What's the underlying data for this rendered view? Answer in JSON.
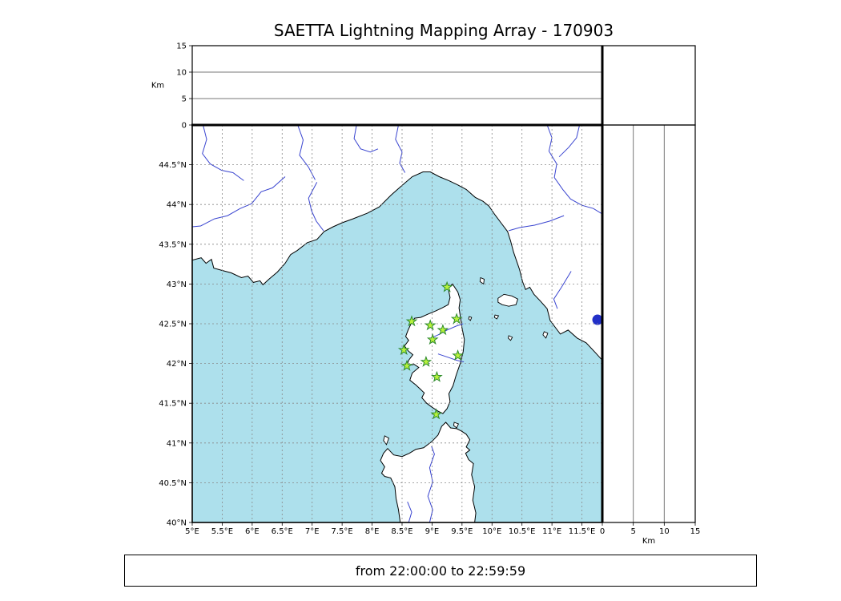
{
  "title": "SAETTA Lightning Mapping Array - 170903",
  "footer": {
    "time_range": "from 22:00:00 to 22:59:59"
  },
  "colors": {
    "sea": "#ade0ec",
    "land": "#ffffff",
    "coastline": "#000000",
    "river": "#3a45d0",
    "lake": "#2230c8",
    "grid": "#888888",
    "frame": "#000000",
    "station_fill": "#b8f23c",
    "station_edge": "#2d8a2d"
  },
  "chart_data": {
    "type": "scatter",
    "title": "SAETTA Lightning Mapping Array - 170903",
    "time_annotation": "from 22:00:00 to 22:59:59",
    "map_axes": {
      "lon_range": [
        5.0,
        11.84
      ],
      "lat_range": [
        40.0,
        45.0
      ],
      "lon_ticks": [
        5,
        5.5,
        6,
        6.5,
        7,
        7.5,
        8,
        8.5,
        9,
        9.5,
        10,
        10.5,
        11,
        11.5
      ],
      "lon_tick_labels": [
        "5°E",
        "5.5°E",
        "6°E",
        "6.5°E",
        "7°E",
        "7.5°E",
        "8°E",
        "8.5°E",
        "9°E",
        "9.5°E",
        "10°E",
        "10.5°E",
        "11°E",
        "11.5°E"
      ],
      "lat_ticks": [
        40,
        40.5,
        41,
        41.5,
        42,
        42.5,
        43,
        43.5,
        44,
        44.5
      ],
      "lat_tick_labels": [
        "40°N",
        "40.5°N",
        "41°N",
        "41.5°N",
        "42°N",
        "42.5°N",
        "43°N",
        "43.5°N",
        "44°N",
        "44.5°N"
      ],
      "grid_dashed": true
    },
    "altitude_axes": {
      "label": "Km",
      "range": [
        0,
        15
      ],
      "ticks": [
        0,
        5,
        10,
        15
      ],
      "tick_labels": [
        "0",
        "5",
        "10",
        "15"
      ],
      "gridlines": [
        5,
        10
      ]
    },
    "stations": [
      {
        "lon": 9.25,
        "lat": 42.96
      },
      {
        "lon": 8.66,
        "lat": 42.53
      },
      {
        "lon": 8.97,
        "lat": 42.48
      },
      {
        "lon": 9.41,
        "lat": 42.56
      },
      {
        "lon": 9.18,
        "lat": 42.42
      },
      {
        "lon": 9.01,
        "lat": 42.3
      },
      {
        "lon": 8.53,
        "lat": 42.17
      },
      {
        "lon": 9.43,
        "lat": 42.1
      },
      {
        "lon": 8.58,
        "lat": 41.97
      },
      {
        "lon": 8.9,
        "lat": 42.02
      },
      {
        "lon": 9.08,
        "lat": 41.83
      },
      {
        "lon": 9.07,
        "lat": 41.36
      }
    ],
    "lake_marker": {
      "lon": 11.76,
      "lat": 42.55,
      "radius_px": 6.5
    },
    "basemap": {
      "mainland_coast": [
        [
          5.0,
          43.3
        ],
        [
          5.15,
          43.33
        ],
        [
          5.23,
          43.26
        ],
        [
          5.32,
          43.31
        ],
        [
          5.36,
          43.2
        ],
        [
          5.5,
          43.17
        ],
        [
          5.65,
          43.14
        ],
        [
          5.82,
          43.08
        ],
        [
          5.93,
          43.1
        ],
        [
          6.02,
          43.02
        ],
        [
          6.13,
          43.04
        ],
        [
          6.18,
          42.99
        ],
        [
          6.28,
          43.06
        ],
        [
          6.42,
          43.15
        ],
        [
          6.55,
          43.26
        ],
        [
          6.64,
          43.37
        ],
        [
          6.75,
          43.42
        ],
        [
          6.92,
          43.52
        ],
        [
          7.08,
          43.56
        ],
        [
          7.2,
          43.66
        ],
        [
          7.35,
          43.72
        ],
        [
          7.5,
          43.77
        ],
        [
          7.68,
          43.82
        ],
        [
          7.92,
          43.89
        ],
        [
          8.12,
          43.97
        ],
        [
          8.32,
          44.12
        ],
        [
          8.5,
          44.24
        ],
        [
          8.67,
          44.35
        ],
        [
          8.85,
          44.41
        ],
        [
          8.97,
          44.41
        ],
        [
          9.12,
          44.35
        ],
        [
          9.28,
          44.3
        ],
        [
          9.42,
          44.25
        ],
        [
          9.57,
          44.19
        ],
        [
          9.72,
          44.09
        ],
        [
          9.85,
          44.04
        ],
        [
          9.95,
          43.98
        ],
        [
          10.05,
          43.87
        ],
        [
          10.16,
          43.76
        ],
        [
          10.26,
          43.66
        ],
        [
          10.31,
          43.54
        ],
        [
          10.36,
          43.4
        ],
        [
          10.46,
          43.18
        ],
        [
          10.51,
          43.03
        ],
        [
          10.56,
          42.93
        ],
        [
          10.63,
          42.96
        ],
        [
          10.7,
          42.87
        ],
        [
          10.8,
          42.79
        ],
        [
          10.92,
          42.69
        ],
        [
          10.97,
          42.54
        ],
        [
          11.07,
          42.44
        ],
        [
          11.14,
          42.37
        ],
        [
          11.27,
          42.42
        ],
        [
          11.42,
          42.32
        ],
        [
          11.57,
          42.26
        ],
        [
          11.72,
          42.14
        ],
        [
          11.84,
          42.04
        ]
      ],
      "corsica": [
        [
          9.34,
          43.0
        ],
        [
          9.27,
          42.95
        ],
        [
          9.3,
          42.83
        ],
        [
          9.27,
          42.74
        ],
        [
          9.17,
          42.7
        ],
        [
          9.06,
          42.66
        ],
        [
          8.93,
          42.62
        ],
        [
          8.81,
          42.58
        ],
        [
          8.71,
          42.57
        ],
        [
          8.65,
          42.5
        ],
        [
          8.6,
          42.42
        ],
        [
          8.56,
          42.34
        ],
        [
          8.61,
          42.29
        ],
        [
          8.54,
          42.22
        ],
        [
          8.6,
          42.16
        ],
        [
          8.68,
          42.11
        ],
        [
          8.61,
          42.04
        ],
        [
          8.58,
          41.97
        ],
        [
          8.7,
          41.99
        ],
        [
          8.78,
          41.95
        ],
        [
          8.67,
          41.88
        ],
        [
          8.63,
          41.79
        ],
        [
          8.73,
          41.73
        ],
        [
          8.8,
          41.68
        ],
        [
          8.87,
          41.63
        ],
        [
          8.83,
          41.57
        ],
        [
          8.91,
          41.5
        ],
        [
          9.0,
          41.45
        ],
        [
          9.1,
          41.4
        ],
        [
          9.18,
          41.37
        ],
        [
          9.25,
          41.43
        ],
        [
          9.3,
          41.52
        ],
        [
          9.28,
          41.62
        ],
        [
          9.35,
          41.72
        ],
        [
          9.4,
          41.85
        ],
        [
          9.47,
          42.0
        ],
        [
          9.52,
          42.15
        ],
        [
          9.54,
          42.3
        ],
        [
          9.5,
          42.45
        ],
        [
          9.47,
          42.6
        ],
        [
          9.45,
          42.7
        ],
        [
          9.47,
          42.8
        ],
        [
          9.43,
          42.9
        ]
      ],
      "sardinia": [
        [
          8.47,
          40.0
        ],
        [
          8.44,
          40.16
        ],
        [
          8.4,
          40.3
        ],
        [
          8.38,
          40.45
        ],
        [
          8.31,
          40.56
        ],
        [
          8.21,
          40.58
        ],
        [
          8.16,
          40.62
        ],
        [
          8.21,
          40.7
        ],
        [
          8.14,
          40.78
        ],
        [
          8.19,
          40.87
        ],
        [
          8.26,
          40.93
        ],
        [
          8.36,
          40.85
        ],
        [
          8.5,
          40.83
        ],
        [
          8.62,
          40.87
        ],
        [
          8.73,
          40.92
        ],
        [
          8.86,
          40.94
        ],
        [
          9.0,
          41.02
        ],
        [
          9.1,
          41.1
        ],
        [
          9.16,
          41.21
        ],
        [
          9.23,
          41.26
        ],
        [
          9.31,
          41.19
        ],
        [
          9.41,
          41.18
        ],
        [
          9.49,
          41.15
        ],
        [
          9.57,
          41.11
        ],
        [
          9.63,
          41.04
        ],
        [
          9.57,
          40.95
        ],
        [
          9.63,
          40.91
        ],
        [
          9.56,
          40.87
        ],
        [
          9.61,
          40.79
        ],
        [
          9.69,
          40.74
        ],
        [
          9.66,
          40.6
        ],
        [
          9.71,
          40.45
        ],
        [
          9.68,
          40.28
        ],
        [
          9.73,
          40.12
        ],
        [
          9.71,
          40.0
        ]
      ],
      "islands": [
        [
          [
            10.1,
            42.82
          ],
          [
            10.2,
            42.87
          ],
          [
            10.33,
            42.85
          ],
          [
            10.43,
            42.81
          ],
          [
            10.4,
            42.74
          ],
          [
            10.28,
            42.72
          ],
          [
            10.17,
            42.74
          ],
          [
            10.1,
            42.77
          ]
        ],
        [
          [
            9.81,
            43.08
          ],
          [
            9.87,
            43.06
          ],
          [
            9.86,
            43.0
          ],
          [
            9.8,
            43.03
          ]
        ],
        [
          [
            10.87,
            42.4
          ],
          [
            10.93,
            42.38
          ],
          [
            10.9,
            42.32
          ],
          [
            10.85,
            42.36
          ]
        ],
        [
          [
            10.28,
            42.35
          ],
          [
            10.34,
            42.33
          ],
          [
            10.31,
            42.29
          ],
          [
            10.27,
            42.32
          ]
        ],
        [
          [
            10.05,
            42.61
          ],
          [
            10.11,
            42.6
          ],
          [
            10.08,
            42.56
          ],
          [
            10.04,
            42.58
          ]
        ],
        [
          [
            8.21,
            41.09
          ],
          [
            8.28,
            41.06
          ],
          [
            8.24,
            40.98
          ],
          [
            8.19,
            41.03
          ]
        ],
        [
          [
            9.37,
            41.26
          ],
          [
            9.44,
            41.24
          ],
          [
            9.41,
            41.19
          ],
          [
            9.36,
            41.22
          ]
        ],
        [
          [
            9.62,
            42.59
          ],
          [
            9.66,
            42.58
          ],
          [
            9.64,
            42.54
          ],
          [
            9.61,
            42.56
          ]
        ]
      ],
      "rivers": [
        [
          [
            5.18,
            45.0
          ],
          [
            5.24,
            44.82
          ],
          [
            5.17,
            44.64
          ],
          [
            5.3,
            44.51
          ],
          [
            5.49,
            44.43
          ],
          [
            5.68,
            44.4
          ],
          [
            5.86,
            44.3
          ]
        ],
        [
          [
            6.55,
            44.35
          ],
          [
            6.34,
            44.21
          ],
          [
            6.15,
            44.16
          ],
          [
            5.99,
            44.01
          ],
          [
            5.8,
            43.95
          ],
          [
            5.59,
            43.86
          ],
          [
            5.37,
            43.82
          ],
          [
            5.14,
            43.73
          ],
          [
            5.0,
            43.72
          ]
        ],
        [
          [
            7.08,
            44.28
          ],
          [
            6.94,
            44.08
          ],
          [
            6.99,
            43.92
          ],
          [
            7.07,
            43.79
          ],
          [
            7.19,
            43.67
          ]
        ],
        [
          [
            6.76,
            45.0
          ],
          [
            6.85,
            44.81
          ],
          [
            6.79,
            44.62
          ],
          [
            6.94,
            44.47
          ],
          [
            7.05,
            44.31
          ]
        ],
        [
          [
            7.74,
            45.0
          ],
          [
            7.7,
            44.83
          ],
          [
            7.81,
            44.7
          ],
          [
            7.97,
            44.66
          ],
          [
            8.1,
            44.7
          ]
        ],
        [
          [
            8.44,
            45.0
          ],
          [
            8.39,
            44.82
          ],
          [
            8.5,
            44.66
          ],
          [
            8.46,
            44.52
          ],
          [
            8.55,
            44.4
          ]
        ],
        [
          [
            10.92,
            45.0
          ],
          [
            11.0,
            44.84
          ],
          [
            10.95,
            44.67
          ],
          [
            11.08,
            44.51
          ],
          [
            11.04,
            44.34
          ],
          [
            11.18,
            44.19
          ],
          [
            11.31,
            44.07
          ],
          [
            11.5,
            43.99
          ],
          [
            11.69,
            43.95
          ],
          [
            11.84,
            43.88
          ]
        ],
        [
          [
            11.46,
            45.0
          ],
          [
            11.41,
            44.84
          ],
          [
            11.28,
            44.72
          ],
          [
            11.12,
            44.6
          ]
        ],
        [
          [
            11.2,
            43.86
          ],
          [
            10.96,
            43.79
          ],
          [
            10.71,
            43.74
          ],
          [
            10.46,
            43.71
          ],
          [
            10.28,
            43.67
          ]
        ],
        [
          [
            11.32,
            43.16
          ],
          [
            11.16,
            42.96
          ],
          [
            11.03,
            42.81
          ],
          [
            11.09,
            42.69
          ]
        ],
        [
          [
            8.95,
            42.31
          ],
          [
            9.1,
            42.36
          ],
          [
            9.25,
            42.42
          ],
          [
            9.4,
            42.47
          ],
          [
            9.52,
            42.5
          ]
        ],
        [
          [
            9.1,
            42.12
          ],
          [
            9.26,
            42.08
          ],
          [
            9.41,
            42.04
          ],
          [
            9.53,
            42.02
          ]
        ],
        [
          [
            8.96,
            40.0
          ],
          [
            9.01,
            40.16
          ],
          [
            8.93,
            40.33
          ],
          [
            9.01,
            40.51
          ],
          [
            8.96,
            40.69
          ],
          [
            9.04,
            40.86
          ],
          [
            8.99,
            40.96
          ]
        ],
        [
          [
            8.61,
            40.0
          ],
          [
            8.66,
            40.13
          ],
          [
            8.59,
            40.26
          ]
        ]
      ]
    }
  }
}
